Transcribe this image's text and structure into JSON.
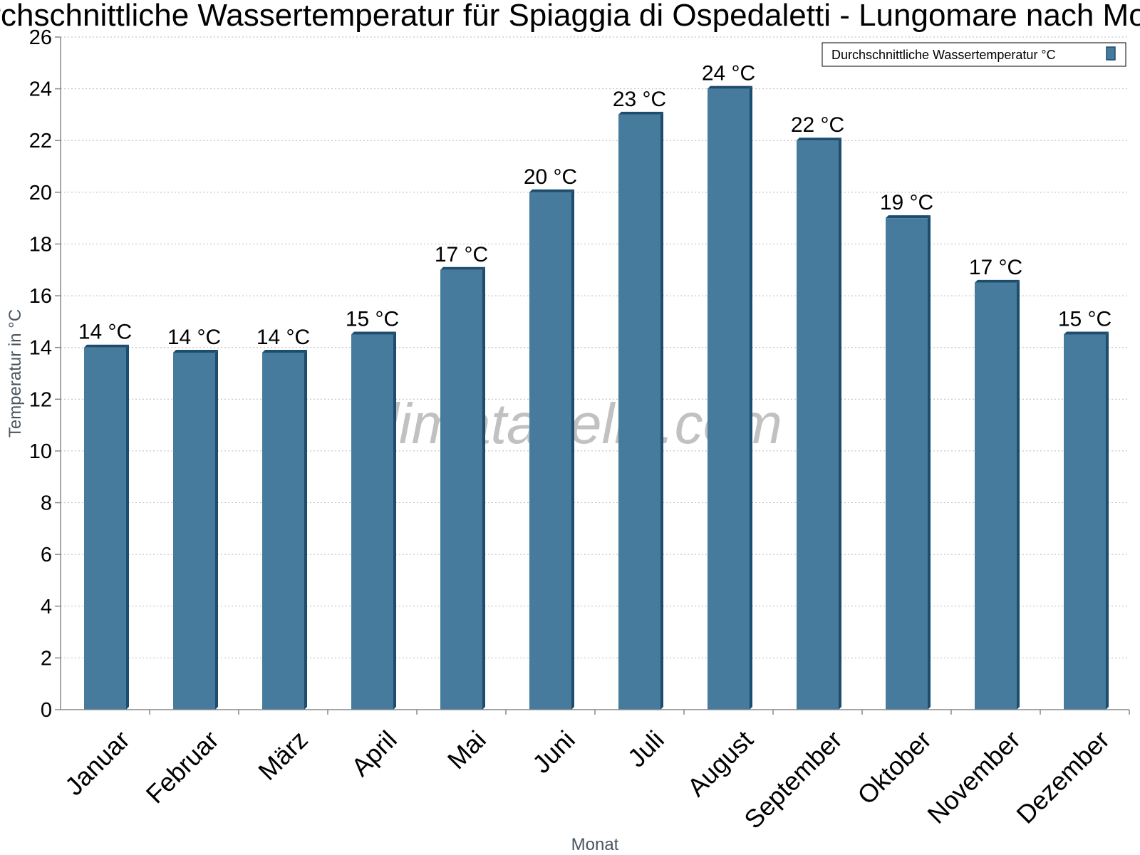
{
  "chart_data": {
    "type": "bar",
    "title": "Durchschnittliche Wassertemperatur für Spiaggia di Ospedaletti - Lungomare nach Monat",
    "xlabel": "Monat",
    "ylabel": "Temperatur in °C",
    "ylim": [
      0,
      26
    ],
    "yticks": [
      "0",
      "2",
      "4",
      "6",
      "8",
      "10",
      "12",
      "14",
      "16",
      "18",
      "20",
      "22",
      "24",
      "26"
    ],
    "grid": true,
    "legend_position": "top-right",
    "categories": [
      "Januar",
      "Februar",
      "März",
      "April",
      "Mai",
      "Juni",
      "Juli",
      "August",
      "September",
      "Oktober",
      "November",
      "Dezember"
    ],
    "series": [
      {
        "name": "Durchschnittliche Wassertemperatur °C",
        "values": [
          14.0,
          13.8,
          13.8,
          14.5,
          17.0,
          20.0,
          23.0,
          24.0,
          22.0,
          19.0,
          16.5,
          14.5
        ],
        "labels": [
          "14 °C",
          "14 °C",
          "14 °C",
          "15 °C",
          "17 °C",
          "20 °C",
          "23 °C",
          "24 °C",
          "22 °C",
          "19 °C",
          "17 °C",
          "15 °C"
        ],
        "color": "#467b9d",
        "edge_color": "#1d4d6e"
      }
    ],
    "watermark": "klimatabelle.com"
  }
}
